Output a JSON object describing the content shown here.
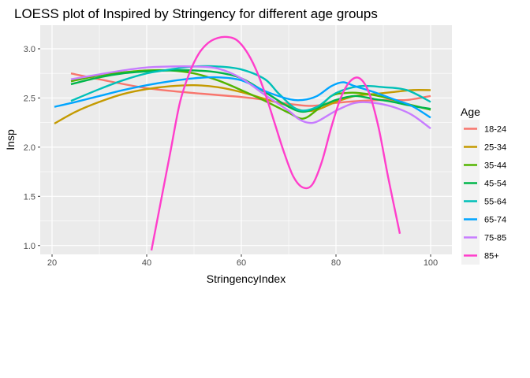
{
  "chart_data": {
    "type": "line",
    "title": "LOESS plot of Inspired by Stringency for different age groups",
    "xlabel": "StringencyIndex",
    "ylabel": "Insp",
    "xlim": [
      17.5,
      104.5
    ],
    "ylim": [
      0.91,
      3.24
    ],
    "x_ticks": [
      20,
      40,
      60,
      80,
      100
    ],
    "x_tick_labels": [
      "20",
      "40",
      "60",
      "80",
      "100"
    ],
    "y_ticks": [
      1.0,
      1.5,
      2.0,
      2.5,
      3.0
    ],
    "y_tick_labels": [
      "1.0",
      "1.5",
      "2.0",
      "2.5",
      "3.0"
    ],
    "grid": true,
    "legend": {
      "title": "Age",
      "position": "right"
    },
    "series": [
      {
        "name": "18-24",
        "color": "#F8766D",
        "x": [
          24,
          30,
          40,
          50,
          60,
          65,
          70,
          75,
          80,
          85,
          90,
          95,
          100
        ],
        "y": [
          2.75,
          2.69,
          2.6,
          2.55,
          2.51,
          2.48,
          2.44,
          2.42,
          2.45,
          2.47,
          2.48,
          2.48,
          2.52
        ]
      },
      {
        "name": "25-34",
        "color": "#C49A00",
        "x": [
          20.5,
          25,
          30,
          35,
          40,
          45,
          50,
          55,
          60,
          65,
          70,
          73,
          76,
          80,
          84,
          88,
          92,
          96,
          100
        ],
        "y": [
          2.24,
          2.36,
          2.46,
          2.54,
          2.59,
          2.62,
          2.63,
          2.61,
          2.56,
          2.49,
          2.42,
          2.37,
          2.38,
          2.46,
          2.52,
          2.54,
          2.56,
          2.58,
          2.58
        ]
      },
      {
        "name": "35-44",
        "color": "#53B400",
        "x": [
          24,
          30,
          35,
          40,
          45,
          50,
          55,
          60,
          65,
          70,
          73,
          76,
          79,
          82,
          85,
          90,
          95,
          100
        ],
        "y": [
          2.67,
          2.73,
          2.76,
          2.78,
          2.78,
          2.75,
          2.68,
          2.58,
          2.47,
          2.35,
          2.29,
          2.38,
          2.52,
          2.55,
          2.55,
          2.51,
          2.44,
          2.38
        ]
      },
      {
        "name": "45-54",
        "color": "#00B64A",
        "x": [
          24,
          30,
          35,
          40,
          45,
          50,
          55,
          60,
          65,
          70,
          73,
          76,
          80,
          84,
          88,
          92,
          96,
          100
        ],
        "y": [
          2.64,
          2.71,
          2.75,
          2.77,
          2.78,
          2.78,
          2.76,
          2.7,
          2.56,
          2.41,
          2.36,
          2.4,
          2.48,
          2.52,
          2.49,
          2.46,
          2.42,
          2.39
        ]
      },
      {
        "name": "55-64",
        "color": "#00C0B8",
        "x": [
          24,
          30,
          35,
          40,
          45,
          50,
          55,
          60,
          65,
          68,
          72,
          76,
          80,
          85,
          90,
          95,
          100
        ],
        "y": [
          2.47,
          2.59,
          2.68,
          2.75,
          2.79,
          2.82,
          2.82,
          2.79,
          2.69,
          2.54,
          2.38,
          2.41,
          2.55,
          2.62,
          2.61,
          2.58,
          2.46
        ]
      },
      {
        "name": "65-74",
        "color": "#00A5FF",
        "x": [
          20.5,
          25,
          30,
          35,
          40,
          45,
          50,
          55,
          60,
          65,
          70,
          73,
          76,
          79,
          81.5,
          84,
          88,
          92,
          96,
          100
        ],
        "y": [
          2.41,
          2.46,
          2.52,
          2.58,
          2.63,
          2.67,
          2.7,
          2.71,
          2.68,
          2.57,
          2.49,
          2.48,
          2.52,
          2.62,
          2.66,
          2.62,
          2.56,
          2.49,
          2.42,
          2.3
        ]
      },
      {
        "name": "75-85",
        "color": "#C77CFF",
        "x": [
          24,
          30,
          35,
          40,
          45,
          50,
          55,
          60,
          65,
          70,
          72,
          74,
          76,
          80,
          84,
          88,
          92,
          96,
          100
        ],
        "y": [
          2.69,
          2.74,
          2.78,
          2.81,
          2.82,
          2.82,
          2.8,
          2.7,
          2.53,
          2.37,
          2.29,
          2.25,
          2.26,
          2.37,
          2.45,
          2.45,
          2.41,
          2.33,
          2.19
        ]
      },
      {
        "name": "85+",
        "color": "#FF3ECB",
        "x": [
          41,
          43,
          45,
          47,
          49,
          51,
          53,
          55,
          57,
          59,
          61,
          63,
          65,
          67,
          69,
          71,
          73,
          75,
          77,
          79,
          81,
          83,
          85,
          87,
          89,
          91,
          93.5
        ],
        "y": [
          0.95,
          1.45,
          1.95,
          2.45,
          2.75,
          2.95,
          3.06,
          3.11,
          3.12,
          3.09,
          2.98,
          2.8,
          2.55,
          2.25,
          1.95,
          1.7,
          1.59,
          1.62,
          1.85,
          2.2,
          2.5,
          2.67,
          2.7,
          2.55,
          2.2,
          1.7,
          1.12
        ]
      }
    ]
  }
}
